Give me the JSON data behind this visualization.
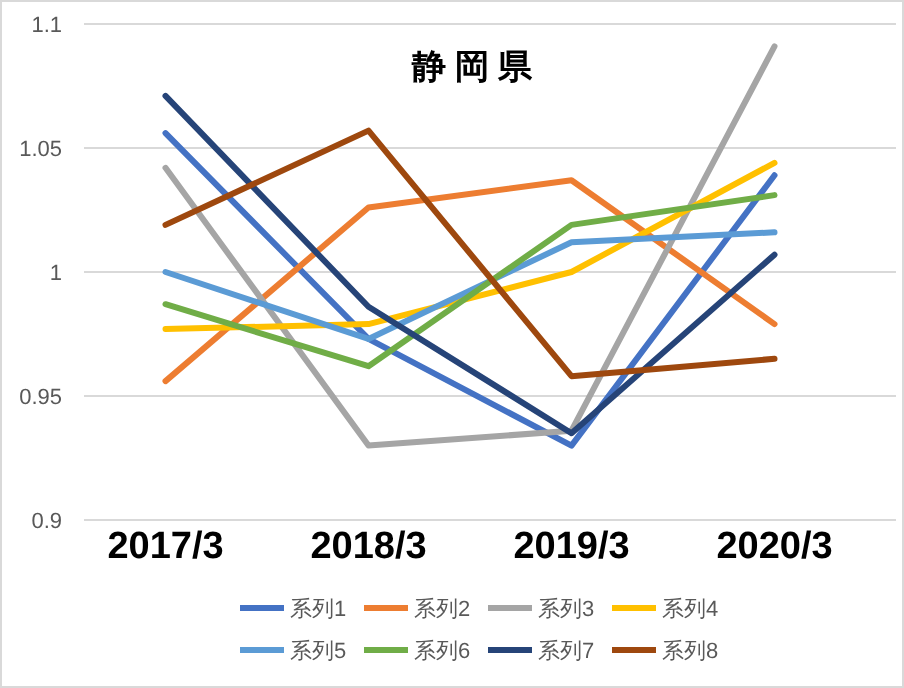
{
  "chart_data": {
    "type": "line",
    "title": "静 岡 県",
    "categories": [
      "2017/3",
      "2018/3",
      "2019/3",
      "2020/3"
    ],
    "ylim": [
      0.9,
      1.1
    ],
    "yticks": [
      {
        "value": 0.9,
        "label": "0.9"
      },
      {
        "value": 0.95,
        "label": "0.95"
      },
      {
        "value": 1,
        "label": "1"
      },
      {
        "value": 1.05,
        "label": "1.05"
      },
      {
        "value": 1.1,
        "label": "1.1"
      }
    ],
    "grid": "y",
    "legend": "bottom",
    "marker": "none",
    "line_style": "solid",
    "series": [
      {
        "name": "系列1",
        "color": "#4472c4",
        "values": [
          1.056,
          0.973,
          0.93,
          1.039
        ]
      },
      {
        "name": "系列2",
        "color": "#ed7d31",
        "values": [
          0.956,
          1.026,
          1.037,
          0.979
        ]
      },
      {
        "name": "系列3",
        "color": "#a5a5a5",
        "values": [
          1.042,
          0.93,
          0.936,
          1.091
        ]
      },
      {
        "name": "系列4",
        "color": "#ffc000",
        "values": [
          0.977,
          0.979,
          1.0,
          1.044
        ]
      },
      {
        "name": "系列5",
        "color": "#5b9bd5",
        "values": [
          1.0,
          0.973,
          1.012,
          1.016
        ]
      },
      {
        "name": "系列6",
        "color": "#70ad47",
        "values": [
          0.987,
          0.962,
          1.019,
          1.031
        ]
      },
      {
        "name": "系列7",
        "color": "#264478",
        "values": [
          1.071,
          0.986,
          0.935,
          1.007
        ]
      },
      {
        "name": "系列8",
        "color": "#9e480e",
        "values": [
          1.019,
          1.057,
          0.958,
          0.965
        ]
      }
    ]
  }
}
